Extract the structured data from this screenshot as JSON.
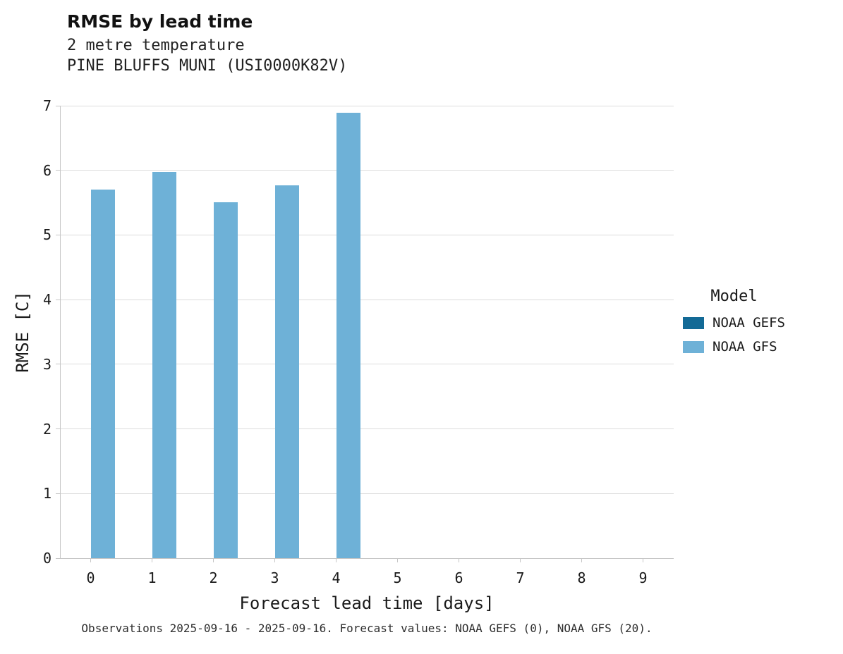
{
  "header": {
    "title": "RMSE by lead time",
    "subtitle1": "2 metre temperature",
    "subtitle2": "PINE BLUFFS MUNI (USI0000K82V)"
  },
  "chart_data": {
    "type": "bar",
    "title": "RMSE by lead time",
    "subtitle": [
      "2 metre temperature",
      "PINE BLUFFS MUNI (USI0000K82V)"
    ],
    "categories": [
      0,
      1,
      2,
      3,
      4,
      5,
      6,
      7,
      8,
      9
    ],
    "series": [
      {
        "name": "NOAA GEFS",
        "color": "#136a96",
        "values": [
          null,
          null,
          null,
          null,
          null,
          null,
          null,
          null,
          null,
          null
        ]
      },
      {
        "name": "NOAA GFS",
        "color": "#6eb1d7",
        "values": [
          5.7,
          5.97,
          5.51,
          5.77,
          6.89,
          null,
          null,
          null,
          null,
          null
        ]
      }
    ],
    "xlabel": "Forecast lead time [days]",
    "ylabel": "RMSE [C]",
    "ylim": [
      0,
      7
    ],
    "yticks": [
      0,
      1,
      2,
      3,
      4,
      5,
      6,
      7
    ],
    "grid": true,
    "legend_title": "Model",
    "legend_position": "right"
  },
  "footer": {
    "caption": "Observations 2025-09-16 - 2025-09-16. Forecast values: NOAA GEFS (0), NOAA GFS (20)."
  }
}
